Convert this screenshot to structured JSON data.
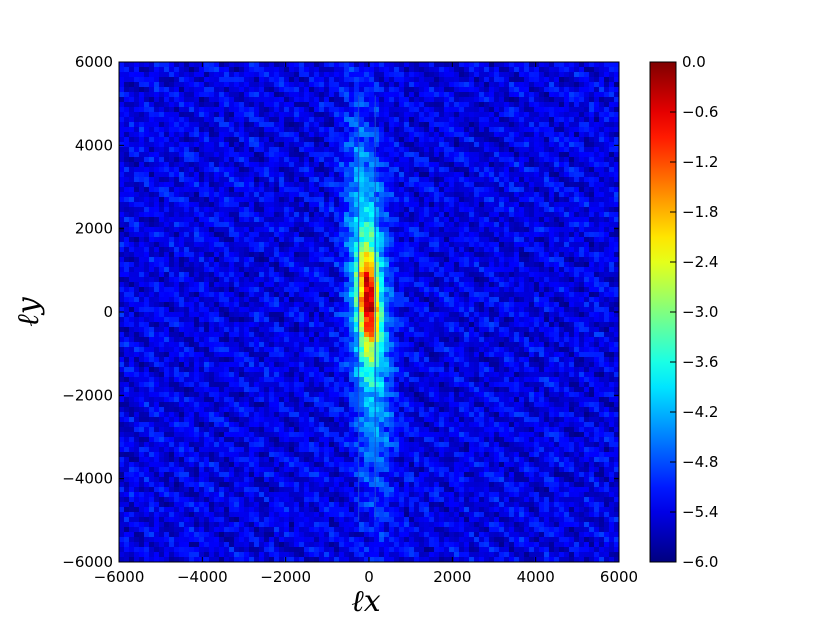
{
  "chart_data": {
    "type": "heatmap",
    "title": "",
    "xlabel": "ℓx",
    "ylabel": "ℓy",
    "xlim": [
      -6000,
      6000
    ],
    "ylim": [
      -6000,
      6000
    ],
    "x_ticks": [
      -6000,
      -4000,
      -2000,
      0,
      2000,
      4000,
      6000
    ],
    "y_ticks": [
      -6000,
      -4000,
      -2000,
      0,
      2000,
      4000,
      6000
    ],
    "x_tick_labels": [
      "−6000",
      "−4000",
      "−2000",
      "0",
      "2000",
      "4000",
      "6000"
    ],
    "y_tick_labels": [
      "−6000",
      "−4000",
      "−2000",
      "0",
      "2000",
      "4000",
      "6000"
    ],
    "colorbar": {
      "range": [
        -6.0,
        0.0
      ],
      "ticks": [
        0.0,
        -0.6,
        -1.2,
        -1.8,
        -2.4,
        -3.0,
        -3.6,
        -4.2,
        -4.8,
        -5.4,
        -6.0
      ],
      "tick_labels": [
        "0.0",
        "−0.6",
        "−1.2",
        "−1.8",
        "−2.4",
        "−3.0",
        "−3.6",
        "−4.2",
        "−4.8",
        "−5.4",
        "−6.0"
      ],
      "colormap": "jet"
    },
    "background_level": -5.4,
    "peak": {
      "x": 0,
      "y": 300,
      "value": -0.2
    },
    "features": [
      {
        "kind": "elongated peak along the ly axis, slightly tilted",
        "center": [
          0,
          300
        ],
        "extent_x": 400,
        "extent_y": 5000
      },
      {
        "kind": "thin vertical line",
        "x": -250,
        "y_range": [
          -5000,
          5200
        ]
      },
      {
        "kind": "thin vertical line",
        "x": 150,
        "y_range": [
          -5000,
          5200
        ]
      }
    ],
    "grid": false,
    "legend": "none"
  },
  "colors": {
    "jet_dark_blue": "#00008f",
    "jet_blue": "#0000ff",
    "jet_cyan": "#00ffff",
    "jet_yellow": "#ffff00",
    "jet_red": "#ff0000",
    "jet_dark_red": "#800000"
  }
}
